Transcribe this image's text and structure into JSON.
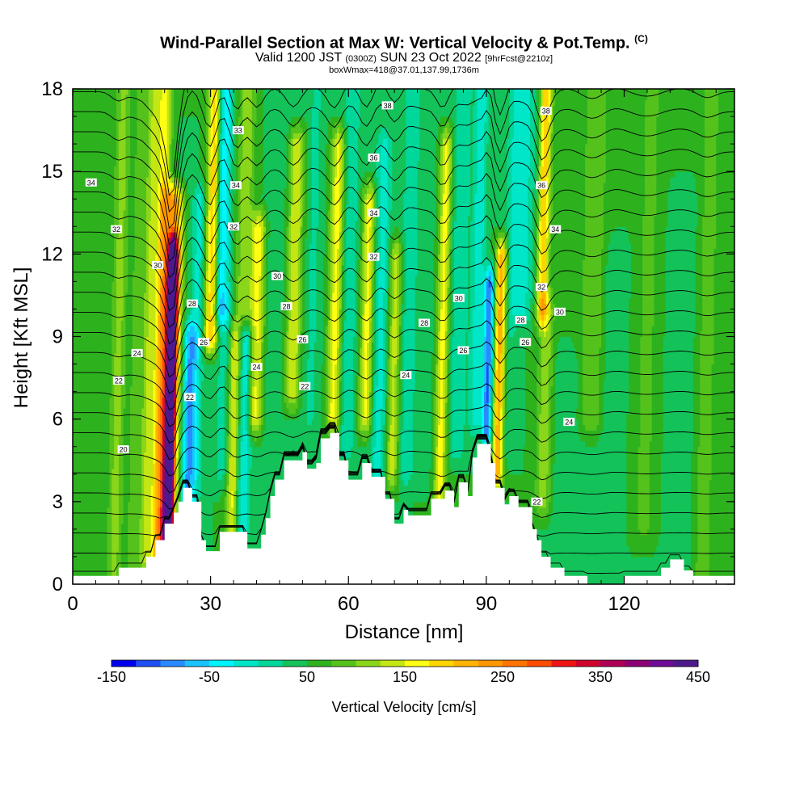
{
  "header": {
    "title": "Wind-Parallel Section at Max W: Vertical Velocity & Pot.Temp.",
    "copyright": "(C)",
    "valid_main": "Valid 1200 JST",
    "valid_utc": "(0300Z)",
    "valid_date": "SUN 23 Oct 2022",
    "valid_fcst": "[9hrFcst@2210z]",
    "box_info": "boxWmax=418@37.01,137.99,1736m"
  },
  "chart_data": {
    "type": "heatmap",
    "xlabel": "Distance [nm]",
    "ylabel": "Height [Kft MSL]",
    "xlim": [
      0,
      144
    ],
    "ylim": [
      0,
      18
    ],
    "x_ticks": [
      "0",
      "30",
      "60",
      "90",
      "120"
    ],
    "y_ticks": [
      "0",
      "3",
      "6",
      "9",
      "12",
      "15",
      "18"
    ],
    "colorbar": {
      "title": "Vertical Velocity [cm/s]",
      "labels": [
        "-150",
        "-50",
        "50",
        "150",
        "250",
        "350",
        "450"
      ],
      "min": -150,
      "max": 450,
      "step": 25,
      "colors": [
        "#0000ee",
        "#1d4ff5",
        "#2a8aff",
        "#19c3ff",
        "#00f5ff",
        "#00e6c8",
        "#00d79a",
        "#14c25a",
        "#2db21e",
        "#55c21c",
        "#8ad61a",
        "#c4e612",
        "#ffff14",
        "#ffd500",
        "#ffb400",
        "#ff9600",
        "#ff7300",
        "#ff4c00",
        "#f01414",
        "#d0002d",
        "#b00055",
        "#8c0074",
        "#6e0c96",
        "#4c1a8c"
      ]
    },
    "background_w": 50,
    "vertical_velocity_features": [
      {
        "x": 10,
        "w": 60,
        "width": 1.6,
        "zmin": 0,
        "zmax": 18
      },
      {
        "x": 14,
        "w": 40,
        "width": 1.4,
        "zmin": 0,
        "zmax": 18
      },
      {
        "x": 16.5,
        "w": 70,
        "width": 1.2,
        "zmin": 1,
        "zmax": 18
      },
      {
        "x": 19,
        "w": 120,
        "width": 1.5,
        "zmin": 0.5,
        "zmax": 18
      },
      {
        "x": 21.5,
        "w": 380,
        "width": 1.1,
        "zmin": 1.8,
        "zmax": 12
      },
      {
        "x": 21.5,
        "w": 180,
        "width": 2.2,
        "zmin": 0.5,
        "zmax": 14
      },
      {
        "x": 24,
        "w": -20,
        "width": 1.3,
        "zmin": 2,
        "zmax": 16
      },
      {
        "x": 25.5,
        "w": -110,
        "width": 1.4,
        "zmin": 2.5,
        "zmax": 9
      },
      {
        "x": 27,
        "w": -60,
        "width": 1.5,
        "zmin": 1.5,
        "zmax": 14
      },
      {
        "x": 30,
        "w": 160,
        "width": 1.4,
        "zmin": 9,
        "zmax": 18
      },
      {
        "x": 32,
        "w": -100,
        "width": 1.8,
        "zmin": 10,
        "zmax": 18
      },
      {
        "x": 33,
        "w": -40,
        "width": 1.6,
        "zmin": 4,
        "zmax": 10
      },
      {
        "x": 35.5,
        "w": 120,
        "width": 1.4,
        "zmin": 2,
        "zmax": 9
      },
      {
        "x": 37.5,
        "w": -80,
        "width": 1.7,
        "zmin": 2,
        "zmax": 9
      },
      {
        "x": 37,
        "w": 70,
        "width": 1.8,
        "zmin": 10,
        "zmax": 18
      },
      {
        "x": 40,
        "w": 110,
        "width": 1.5,
        "zmin": 6,
        "zmax": 13
      },
      {
        "x": 44,
        "w": -20,
        "width": 2,
        "zmin": 4,
        "zmax": 18
      },
      {
        "x": 48,
        "w": 100,
        "width": 1.6,
        "zmin": 7,
        "zmax": 16
      },
      {
        "x": 52,
        "w": -30,
        "width": 1.8,
        "zmin": 6,
        "zmax": 18
      },
      {
        "x": 57,
        "w": 110,
        "width": 1.5,
        "zmin": 6,
        "zmax": 16
      },
      {
        "x": 60,
        "w": -50,
        "width": 1.6,
        "zmin": 5,
        "zmax": 18
      },
      {
        "x": 64,
        "w": 110,
        "width": 1.4,
        "zmin": 6,
        "zmax": 14
      },
      {
        "x": 67,
        "w": -60,
        "width": 1.8,
        "zmin": 2,
        "zmax": 16
      },
      {
        "x": 70,
        "w": 90,
        "width": 1.4,
        "zmin": 4,
        "zmax": 12
      },
      {
        "x": 73,
        "w": -40,
        "width": 2,
        "zmin": 4,
        "zmax": 18
      },
      {
        "x": 77,
        "w": -10,
        "width": 2,
        "zmin": 4,
        "zmax": 18
      },
      {
        "x": 80.5,
        "w": 110,
        "width": 1.3,
        "zmin": 3,
        "zmax": 16
      },
      {
        "x": 84,
        "w": -50,
        "width": 1.8,
        "zmin": 5,
        "zmax": 18
      },
      {
        "x": 88,
        "w": -70,
        "width": 1.4,
        "zmin": 6,
        "zmax": 18
      },
      {
        "x": 90.5,
        "w": -150,
        "width": 1.0,
        "zmin": 5.5,
        "zmax": 11
      },
      {
        "x": 93,
        "w": 170,
        "width": 1.2,
        "zmin": 4,
        "zmax": 12
      },
      {
        "x": 95,
        "w": -30,
        "width": 1.5,
        "zmin": 5,
        "zmax": 18
      },
      {
        "x": 97.5,
        "w": -60,
        "width": 2.5,
        "zmin": 10,
        "zmax": 18
      },
      {
        "x": 102,
        "w": 150,
        "width": 1.3,
        "zmin": 10,
        "zmax": 18
      },
      {
        "x": 103,
        "w": 70,
        "width": 1.6,
        "zmin": 3,
        "zmax": 10
      },
      {
        "x": 108,
        "w": -20,
        "width": 3,
        "zmin": 0,
        "zmax": 8
      },
      {
        "x": 113,
        "w": 50,
        "width": 2.5,
        "zmin": 6,
        "zmax": 18
      },
      {
        "x": 118,
        "w": -25,
        "width": 2.5,
        "zmin": 0,
        "zmax": 12
      },
      {
        "x": 125,
        "w": 30,
        "width": 3,
        "zmin": 2,
        "zmax": 18
      },
      {
        "x": 132,
        "w": -20,
        "width": 3,
        "zmin": 0,
        "zmax": 14
      },
      {
        "x": 138,
        "w": 40,
        "width": 2,
        "zmin": 0,
        "zmax": 18
      }
    ],
    "terrain_profile": [
      [
        0,
        0.3
      ],
      [
        10,
        0.3
      ],
      [
        10,
        0.6
      ],
      [
        16,
        0.6
      ],
      [
        16,
        1.0
      ],
      [
        18,
        1.0
      ],
      [
        18,
        1.6
      ],
      [
        20,
        1.6
      ],
      [
        20,
        2.2
      ],
      [
        22,
        2.2
      ],
      [
        22,
        2.6
      ],
      [
        23,
        2.6
      ],
      [
        23,
        3.0
      ],
      [
        24,
        3.0
      ],
      [
        24,
        3.5
      ],
      [
        26,
        3.5
      ],
      [
        26,
        3.0
      ],
      [
        28,
        3.0
      ],
      [
        28,
        1.6
      ],
      [
        29,
        1.6
      ],
      [
        29,
        1.2
      ],
      [
        32,
        1.2
      ],
      [
        32,
        1.9
      ],
      [
        38,
        1.9
      ],
      [
        38,
        1.3
      ],
      [
        41,
        1.3
      ],
      [
        41,
        1.8
      ],
      [
        42,
        1.8
      ],
      [
        42,
        2.4
      ],
      [
        43,
        2.4
      ],
      [
        43,
        3.2
      ],
      [
        44,
        3.2
      ],
      [
        44,
        3.8
      ],
      [
        46,
        3.8
      ],
      [
        46,
        4.5
      ],
      [
        50,
        4.5
      ],
      [
        50,
        4.8
      ],
      [
        51,
        4.8
      ],
      [
        51,
        4.2
      ],
      [
        53,
        4.2
      ],
      [
        53,
        4.4
      ],
      [
        54,
        4.4
      ],
      [
        54,
        5.3
      ],
      [
        56,
        5.3
      ],
      [
        56,
        5.5
      ],
      [
        58,
        5.5
      ],
      [
        58,
        4.5
      ],
      [
        60,
        4.5
      ],
      [
        60,
        3.8
      ],
      [
        63,
        3.8
      ],
      [
        63,
        4.4
      ],
      [
        65,
        4.4
      ],
      [
        65,
        3.9
      ],
      [
        68,
        3.9
      ],
      [
        68,
        3.1
      ],
      [
        70,
        3.1
      ],
      [
        70,
        2.2
      ],
      [
        72,
        2.2
      ],
      [
        72,
        2.7
      ],
      [
        73,
        2.7
      ],
      [
        73,
        2.5
      ],
      [
        78,
        2.5
      ],
      [
        78,
        3.1
      ],
      [
        81,
        3.1
      ],
      [
        81,
        3.4
      ],
      [
        83,
        3.4
      ],
      [
        83,
        2.8
      ],
      [
        84,
        2.8
      ],
      [
        84,
        3.7
      ],
      [
        86,
        3.7
      ],
      [
        86,
        3.2
      ],
      [
        87,
        3.2
      ],
      [
        87,
        4.6
      ],
      [
        88,
        4.6
      ],
      [
        88,
        5.1
      ],
      [
        91,
        5.1
      ],
      [
        91,
        4.4
      ],
      [
        92,
        4.4
      ],
      [
        92,
        3.5
      ],
      [
        94,
        3.5
      ],
      [
        94,
        2.9
      ],
      [
        95,
        2.9
      ],
      [
        95,
        3.2
      ],
      [
        97,
        3.2
      ],
      [
        97,
        2.8
      ],
      [
        100,
        2.8
      ],
      [
        100,
        2.0
      ],
      [
        101,
        2.0
      ],
      [
        101,
        1.6
      ],
      [
        102,
        1.6
      ],
      [
        102,
        1.0
      ],
      [
        104,
        1.0
      ],
      [
        104,
        0.6
      ],
      [
        107,
        0.6
      ],
      [
        107,
        0.3
      ],
      [
        112,
        0.3
      ],
      [
        112,
        0.0
      ],
      [
        120,
        0.0
      ],
      [
        120,
        0.3
      ],
      [
        128,
        0.3
      ],
      [
        128,
        0.6
      ],
      [
        130,
        0.6
      ],
      [
        130,
        0.9
      ],
      [
        133,
        0.9
      ],
      [
        133,
        0.5
      ],
      [
        135,
        0.5
      ],
      [
        135,
        0.3
      ],
      [
        144,
        0.3
      ]
    ],
    "theta_contours": {
      "min": 14,
      "max": 38,
      "step": 1,
      "labels": [
        {
          "text": "34",
          "x": 4,
          "y": 14.6
        },
        {
          "text": "32",
          "x": 9.5,
          "y": 12.9
        },
        {
          "text": "30",
          "x": 18.5,
          "y": 11.6
        },
        {
          "text": "28",
          "x": 26,
          "y": 10.2
        },
        {
          "text": "26",
          "x": 28.5,
          "y": 8.8
        },
        {
          "text": "24",
          "x": 14,
          "y": 8.4
        },
        {
          "text": "22",
          "x": 10,
          "y": 7.4
        },
        {
          "text": "22",
          "x": 25.5,
          "y": 6.8
        },
        {
          "text": "20",
          "x": 11,
          "y": 4.9
        },
        {
          "text": "33",
          "x": 36,
          "y": 16.5
        },
        {
          "text": "34",
          "x": 35.5,
          "y": 14.5
        },
        {
          "text": "32",
          "x": 35,
          "y": 13.0
        },
        {
          "text": "30",
          "x": 44.5,
          "y": 11.2
        },
        {
          "text": "28",
          "x": 46.5,
          "y": 10.1
        },
        {
          "text": "26",
          "x": 50,
          "y": 8.9
        },
        {
          "text": "24",
          "x": 40,
          "y": 7.9
        },
        {
          "text": "22",
          "x": 50.5,
          "y": 7.2
        },
        {
          "text": "38",
          "x": 68.5,
          "y": 17.4
        },
        {
          "text": "36",
          "x": 65.5,
          "y": 15.5
        },
        {
          "text": "34",
          "x": 65.5,
          "y": 13.5
        },
        {
          "text": "32",
          "x": 65.5,
          "y": 11.9
        },
        {
          "text": "30",
          "x": 84,
          "y": 10.4
        },
        {
          "text": "28",
          "x": 76.5,
          "y": 9.5
        },
        {
          "text": "26",
          "x": 85,
          "y": 8.5
        },
        {
          "text": "24",
          "x": 72.5,
          "y": 7.6
        },
        {
          "text": "38",
          "x": 103,
          "y": 17.2
        },
        {
          "text": "36",
          "x": 102,
          "y": 14.5
        },
        {
          "text": "34",
          "x": 105,
          "y": 12.9
        },
        {
          "text": "32",
          "x": 102,
          "y": 10.8
        },
        {
          "text": "30",
          "x": 106,
          "y": 9.9
        },
        {
          "text": "28",
          "x": 97.5,
          "y": 9.6
        },
        {
          "text": "26",
          "x": 98.5,
          "y": 8.8
        },
        {
          "text": "24",
          "x": 108,
          "y": 5.9
        },
        {
          "text": "22",
          "x": 101,
          "y": 3.0
        }
      ]
    }
  }
}
